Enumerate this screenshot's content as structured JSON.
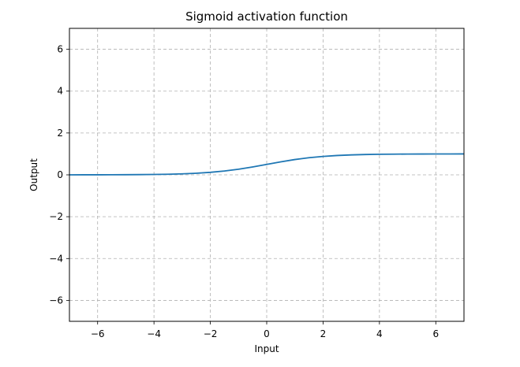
{
  "chart_data": {
    "type": "line",
    "title": "Sigmoid activation function",
    "xlabel": "Input",
    "ylabel": "Output",
    "xlim": [
      -7,
      7
    ],
    "ylim": [
      -7,
      7
    ],
    "xticks": [
      -6,
      -4,
      -2,
      0,
      2,
      4,
      6
    ],
    "yticks": [
      -6,
      -4,
      -2,
      0,
      2,
      4,
      6
    ],
    "xtick_labels": [
      "−6",
      "−4",
      "−2",
      "0",
      "2",
      "4",
      "6"
    ],
    "ytick_labels": [
      "−6",
      "−4",
      "−2",
      "0",
      "2",
      "4",
      "6"
    ],
    "grid": true,
    "legend": "none",
    "series": [
      {
        "color": "#1f77b4",
        "x": [
          -7,
          -6.5,
          -6,
          -5.5,
          -5,
          -4.5,
          -4,
          -3.5,
          -3,
          -2.5,
          -2,
          -1.5,
          -1,
          -0.5,
          0,
          0.5,
          1,
          1.5,
          2,
          2.5,
          3,
          3.5,
          4,
          4.5,
          5,
          5.5,
          6,
          6.5,
          7
        ],
        "y": [
          0.001,
          0.0015,
          0.0025,
          0.0041,
          0.0067,
          0.011,
          0.018,
          0.0293,
          0.0474,
          0.0759,
          0.1192,
          0.1824,
          0.2689,
          0.3775,
          0.5,
          0.6225,
          0.7311,
          0.8176,
          0.8808,
          0.9241,
          0.9526,
          0.9707,
          0.982,
          0.989,
          0.9933,
          0.9959,
          0.9975,
          0.9985,
          0.9991
        ]
      }
    ]
  }
}
